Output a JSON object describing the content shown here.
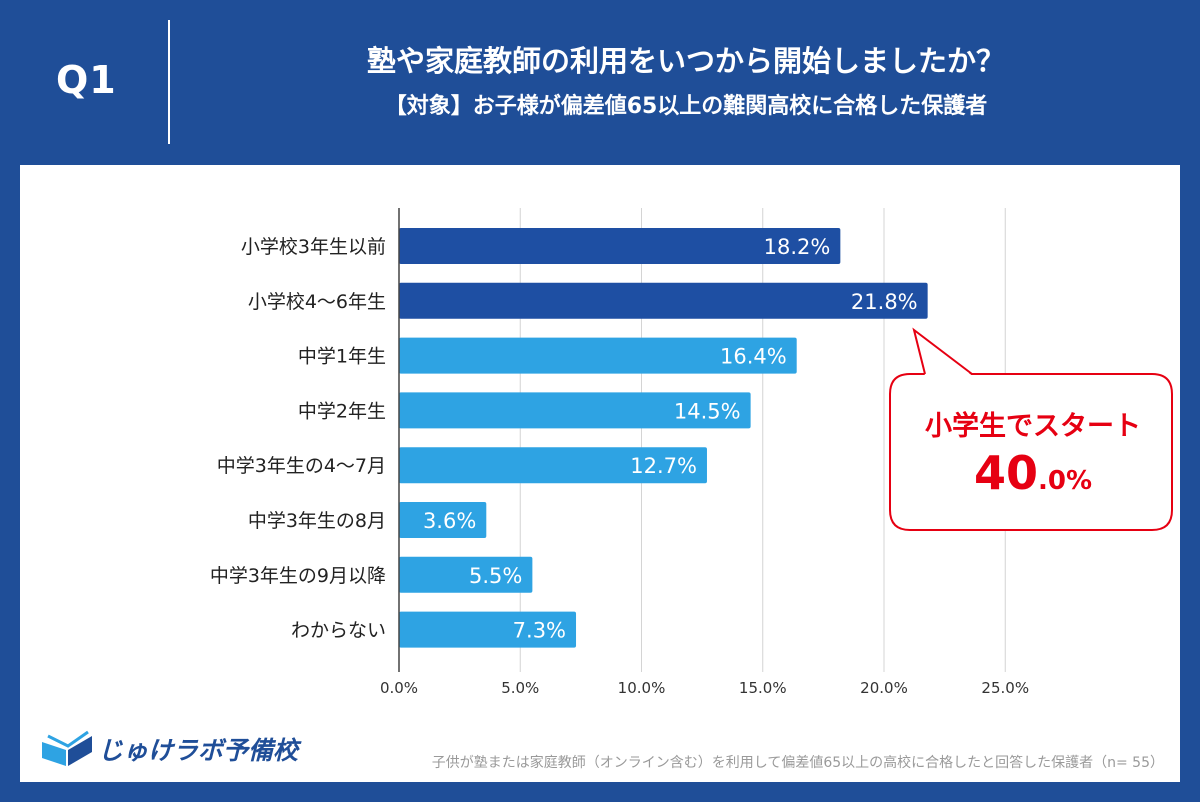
{
  "header": {
    "q_label": "Q1",
    "title": "塾や家庭教師の利用をいつから開始しましたか？",
    "subtitle": "【対象】お子様が偏差値65以上の難関高校に合格した保護者"
  },
  "chart_data": {
    "type": "bar",
    "orientation": "horizontal",
    "categories": [
      "小学校3年生以前",
      "小学校4～6年生",
      "中学1年生",
      "中学2年生",
      "中学3年生の4～7月",
      "中学3年生の8月",
      "中学3年生の9月以降",
      "わからない"
    ],
    "values": [
      18.2,
      21.8,
      16.4,
      14.5,
      12.7,
      3.6,
      5.5,
      7.3
    ],
    "value_labels": [
      "18.2%",
      "21.8%",
      "16.4%",
      "14.5%",
      "12.7%",
      "3.6%",
      "5.5%",
      "7.3%"
    ],
    "bar_colors": [
      "#1e4fa3",
      "#1e4fa3",
      "#2ea3e3",
      "#2ea3e3",
      "#2ea3e3",
      "#2ea3e3",
      "#2ea3e3",
      "#2ea3e3"
    ],
    "xlim": [
      0,
      25
    ],
    "xticks": [
      0,
      5,
      10,
      15,
      20,
      25
    ],
    "xtick_labels": [
      "0.0%",
      "5.0%",
      "10.0%",
      "15.0%",
      "20.0%",
      "25.0%"
    ],
    "grid": true,
    "title": "",
    "xlabel": "",
    "ylabel": ""
  },
  "callout": {
    "text": "小学生でスタート",
    "value_int": "40",
    "value_dec": ".0%",
    "color": "#e60012"
  },
  "logo": {
    "text": "じゅけラボ予備校"
  },
  "footnote": "子供が塾または家庭教師（オンライン含む）を利用して偏差値65以上の高校に合格したと回答した保護者（n= 55）",
  "colors": {
    "background": "#1f4e98",
    "dark_bar": "#1e4fa3",
    "light_bar": "#2ea3e3"
  }
}
